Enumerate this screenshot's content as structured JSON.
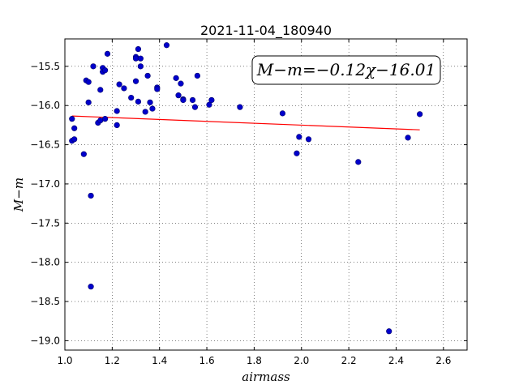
{
  "chart_data": {
    "type": "scatter",
    "title": "2021-11-04_180940",
    "xlabel": "airmass",
    "ylabel": "M−m",
    "xlim": [
      1.0,
      2.7
    ],
    "ylim": [
      -19.12,
      -15.15
    ],
    "x_ticks": [
      "1.0",
      "1.2",
      "1.4",
      "1.6",
      "1.8",
      "2.0",
      "2.2",
      "2.4",
      "2.6"
    ],
    "y_ticks": [
      "−15.5",
      "−16.0",
      "−16.5",
      "−17.0",
      "−17.5",
      "−18.0",
      "−18.5",
      "−19.0"
    ],
    "grid": true,
    "annotation": "M−m=−0.12χ−16.01",
    "fit": {
      "slope": -0.12,
      "intercept": -16.01,
      "x_range": [
        1.03,
        2.5
      ],
      "color": "#ff0000"
    },
    "point_color": "#0000cc",
    "points": [
      [
        1.03,
        -16.17
      ],
      [
        1.03,
        -16.45
      ],
      [
        1.04,
        -16.29
      ],
      [
        1.04,
        -16.43
      ],
      [
        1.08,
        -16.62
      ],
      [
        1.09,
        -15.68
      ],
      [
        1.1,
        -15.7
      ],
      [
        1.1,
        -15.96
      ],
      [
        1.11,
        -17.15
      ],
      [
        1.11,
        -18.31
      ],
      [
        1.12,
        -15.5
      ],
      [
        1.14,
        -16.22
      ],
      [
        1.15,
        -16.19
      ],
      [
        1.15,
        -15.8
      ],
      [
        1.16,
        -15.52
      ],
      [
        1.16,
        -15.57
      ],
      [
        1.17,
        -16.17
      ],
      [
        1.17,
        -15.55
      ],
      [
        1.18,
        -15.34
      ],
      [
        1.22,
        -16.07
      ],
      [
        1.22,
        -16.25
      ],
      [
        1.23,
        -15.73
      ],
      [
        1.25,
        -15.78
      ],
      [
        1.28,
        -15.9
      ],
      [
        1.3,
        -15.38
      ],
      [
        1.3,
        -15.4
      ],
      [
        1.3,
        -15.69
      ],
      [
        1.31,
        -15.28
      ],
      [
        1.31,
        -15.95
      ],
      [
        1.32,
        -15.5
      ],
      [
        1.32,
        -15.4
      ],
      [
        1.34,
        -16.08
      ],
      [
        1.35,
        -15.62
      ],
      [
        1.36,
        -15.96
      ],
      [
        1.37,
        -16.04
      ],
      [
        1.39,
        -15.77
      ],
      [
        1.39,
        -15.79
      ],
      [
        1.43,
        -15.23
      ],
      [
        1.47,
        -15.65
      ],
      [
        1.48,
        -15.87
      ],
      [
        1.49,
        -15.72
      ],
      [
        1.5,
        -15.92
      ],
      [
        1.5,
        -15.93
      ],
      [
        1.54,
        -15.93
      ],
      [
        1.55,
        -16.02
      ],
      [
        1.56,
        -15.62
      ],
      [
        1.61,
        -15.99
      ],
      [
        1.62,
        -15.93
      ],
      [
        1.74,
        -16.02
      ],
      [
        1.92,
        -16.1
      ],
      [
        1.98,
        -16.61
      ],
      [
        1.99,
        -16.4
      ],
      [
        2.03,
        -16.43
      ],
      [
        2.24,
        -16.72
      ],
      [
        2.37,
        -18.88
      ],
      [
        2.45,
        -16.41
      ],
      [
        2.5,
        -16.11
      ]
    ]
  }
}
